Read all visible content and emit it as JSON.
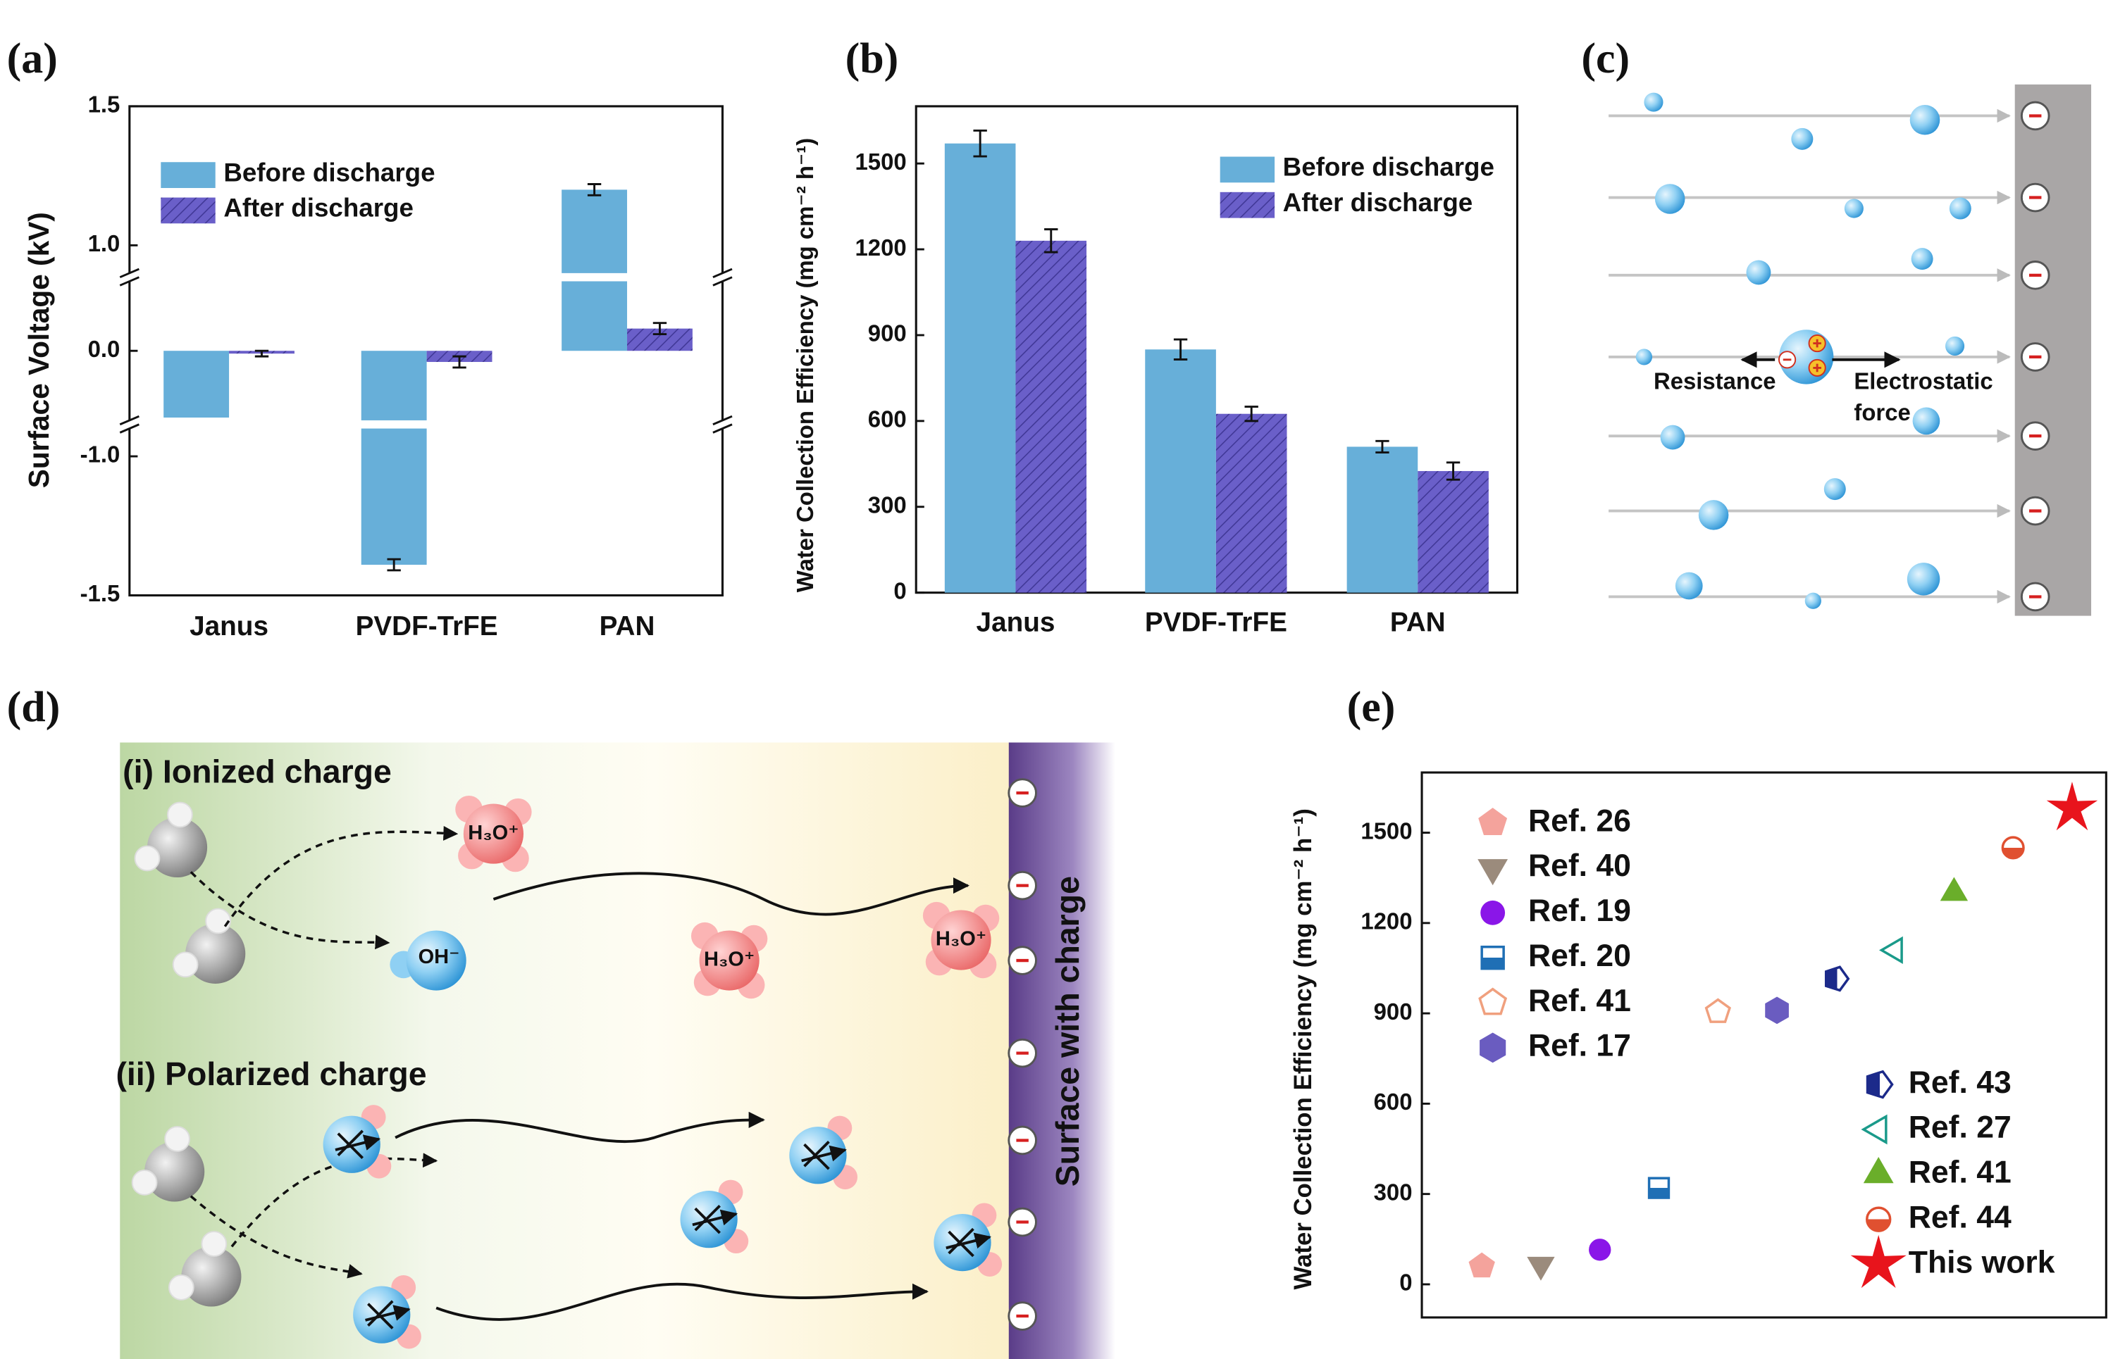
{
  "panel_labels": [
    "(a)",
    "(b)",
    "(c)",
    "(d)",
    "(e)"
  ],
  "chart_data": [
    {
      "type": "bar",
      "y_label": "Surface Voltage (kV)",
      "categories": [
        "Janus",
        "PVDF-TrFE",
        "PAN"
      ],
      "series": [
        {
          "name": "Before discharge",
          "color": "#67afd9",
          "values": [
            -0.24,
            -1.39,
            1.2
          ],
          "errors": [
            null,
            0.02,
            0.02
          ]
        },
        {
          "name": "After discharge",
          "color": "#6a5fc9",
          "hatch": true,
          "values": [
            -0.01,
            -0.04,
            0.08
          ],
          "errors": [
            0.01,
            0.02,
            0.02
          ]
        }
      ],
      "ylim": [
        -1.5,
        1.5
      ],
      "ybreaks": [
        [
          -0.9,
          -0.25
        ],
        [
          0.25,
          0.9
        ]
      ],
      "yticks": [
        -1.5,
        {
          "value": -1.0,
          "label": "-1.0"
        },
        {
          "value": 0.0,
          "label": "0.0"
        },
        {
          "value": 1.0,
          "label": "1.0"
        },
        1.5
      ],
      "grid": false
    },
    {
      "type": "bar",
      "y_label": "Water Collection Efficiency (mg cm⁻² h⁻¹)",
      "categories": [
        "Janus",
        "PVDF-TrFE",
        "PAN"
      ],
      "series": [
        {
          "name": "Before discharge",
          "color": "#67afd9",
          "values": [
            1570,
            850,
            510
          ],
          "errors": [
            45,
            35,
            20
          ]
        },
        {
          "name": "After discharge",
          "color": "#6a5fc9",
          "hatch": true,
          "values": [
            1230,
            625,
            425
          ],
          "errors": [
            40,
            25,
            30
          ]
        }
      ],
      "ylim": [
        0,
        1700
      ],
      "yticks": [
        0,
        300,
        600,
        900,
        1200,
        1500
      ],
      "grid": false
    },
    {
      "type": "scatter",
      "y_label": "Water Collection Efficiency (mg cm⁻² h⁻¹)",
      "series": [
        {
          "name": "Ref. 26",
          "color": "#f4a39c",
          "marker": "pentagon",
          "values": [
            60
          ]
        },
        {
          "name": "Ref. 40",
          "color": "#9b8b7c",
          "marker": "triangle-down",
          "values": [
            65
          ]
        },
        {
          "name": "Ref. 19",
          "color": "#8a16e8",
          "marker": "circle",
          "values": [
            115
          ]
        },
        {
          "name": "Ref. 20",
          "color": "#1f6fb5",
          "marker": "square-half",
          "values": [
            320
          ]
        },
        {
          "name": "Ref. 41",
          "color": "#f0a07e",
          "marker": "pentagon-open",
          "values": [
            905
          ]
        },
        {
          "name": "Ref. 17",
          "color": "#6a5cc0",
          "marker": "hexagon",
          "values": [
            910
          ]
        },
        {
          "name": "Ref. 43",
          "color": "#1c2a8a",
          "marker": "pentagon-half",
          "values": [
            1015
          ]
        },
        {
          "name": "Ref. 27",
          "color": "#1a9a8a",
          "marker": "triangle-left-open",
          "values": [
            1110
          ]
        },
        {
          "name": "Ref. 41",
          "color": "#6aae2a",
          "marker": "triangle-up",
          "values": [
            1300
          ]
        },
        {
          "name": "Ref. 44",
          "color": "#e05030",
          "marker": "circle-half",
          "values": [
            1450
          ]
        },
        {
          "name": "This work",
          "color": "#e8141c",
          "marker": "star",
          "values": [
            1580
          ]
        }
      ],
      "ylim": [
        -110,
        1700
      ],
      "yticks": [
        0,
        300,
        600,
        900,
        1200,
        1500
      ],
      "grid": false
    }
  ],
  "diagram_c": {
    "labels": [
      "Resistance",
      "Electrostatic",
      "force"
    ]
  },
  "diagram_d": {
    "sections": [
      "(i) Ionized charge",
      "(ii) Polarized charge"
    ],
    "surface": "Surface with charge",
    "ions": [
      "H₃O⁺",
      "OH⁻",
      "H₃O⁺",
      "H₃O⁺"
    ]
  }
}
